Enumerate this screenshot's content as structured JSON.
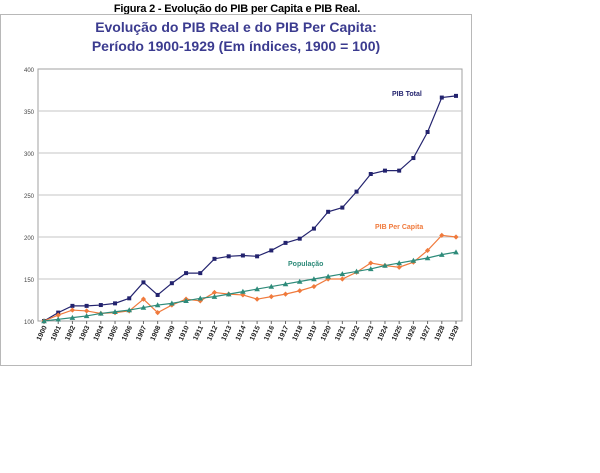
{
  "figure": {
    "caption": "Figura 2 - Evolução do PIB per Capita e PIB Real."
  },
  "chart_data": {
    "type": "line",
    "title": "Evolução do PIB Real e do PIB Per Capita:",
    "subtitle": "Período 1900-1929 (Em índices, 1900 = 100)",
    "xlabel": "",
    "ylabel": "",
    "ylim": [
      100,
      400
    ],
    "yticks": [
      "100",
      "150",
      "200",
      "250",
      "300",
      "350",
      "400"
    ],
    "grid": true,
    "legend": "inline",
    "categories": [
      "1900",
      "1901",
      "1902",
      "1903",
      "1904",
      "1905",
      "1906",
      "1907",
      "1908",
      "1909",
      "1910",
      "1911",
      "1912",
      "1913",
      "1914",
      "1915",
      "1916",
      "1917",
      "1918",
      "1919",
      "1920",
      "1921",
      "1922",
      "1923",
      "1924",
      "1925",
      "1926",
      "1927",
      "1928",
      "1929"
    ],
    "series": [
      {
        "name": "PIB Total",
        "color": "#23236e",
        "marker": "square",
        "values": [
          100,
          110,
          118,
          118,
          119,
          121,
          127,
          146,
          131,
          145,
          157,
          157,
          174,
          177,
          178,
          177,
          184,
          193,
          198,
          210,
          230,
          235,
          254,
          275,
          279,
          279,
          294,
          325,
          366,
          368
        ]
      },
      {
        "name": "PIB Per Capita",
        "color": "#f07a3c",
        "marker": "diamond",
        "values": [
          100,
          107,
          113,
          112,
          109,
          110,
          112,
          126,
          110,
          119,
          126,
          124,
          134,
          132,
          131,
          126,
          129,
          132,
          136,
          141,
          150,
          150,
          158,
          169,
          166,
          164,
          170,
          184,
          202,
          200
        ]
      },
      {
        "name": "População",
        "color": "#2e8b7a",
        "marker": "triangle",
        "values": [
          100,
          102,
          104,
          106,
          109,
          111,
          113,
          116,
          119,
          121,
          124,
          127,
          129,
          132,
          135,
          138,
          141,
          144,
          147,
          150,
          153,
          156,
          159,
          162,
          166,
          169,
          172,
          175,
          179,
          182
        ]
      }
    ]
  }
}
